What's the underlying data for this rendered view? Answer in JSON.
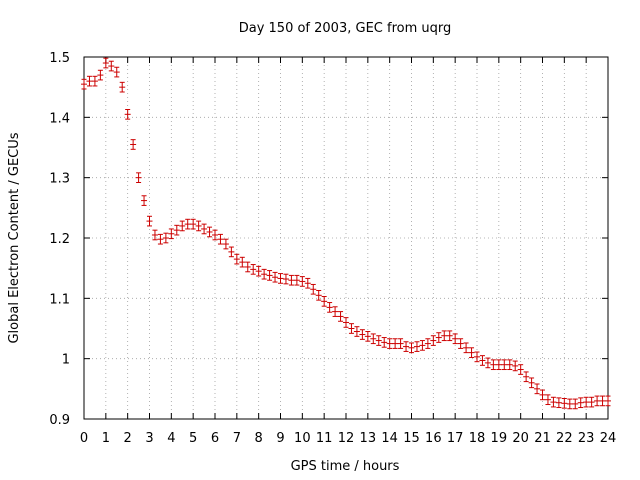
{
  "chart_data": {
    "type": "scatter",
    "title": "Day 150 of 2003, GEC from uqrg",
    "xlabel": "GPS time / hours",
    "ylabel": "Global Electron Content / GECUs",
    "xlim": [
      0,
      24
    ],
    "ylim": [
      0.9,
      1.5
    ],
    "xticks": [
      "0",
      "1",
      "2",
      "3",
      "4",
      "5",
      "6",
      "7",
      "8",
      "9",
      "10",
      "11",
      "12",
      "13",
      "14",
      "15",
      "16",
      "17",
      "18",
      "19",
      "20",
      "21",
      "22",
      "23",
      "24"
    ],
    "yticks": [
      "0.9",
      "1",
      "1.1",
      "1.2",
      "1.3",
      "1.4",
      "1.5"
    ],
    "grid": true,
    "error_bar_halfwidth": 0.008,
    "color": "#cc0000",
    "series": [
      {
        "x": [
          0.0,
          0.25,
          0.5,
          0.75,
          1.0,
          1.25,
          1.5,
          1.75,
          2.0,
          2.25,
          2.5,
          2.75,
          3.0,
          3.25,
          3.5,
          3.75,
          4.0,
          4.25,
          4.5,
          4.75,
          5.0,
          5.25,
          5.5,
          5.75,
          6.0,
          6.25,
          6.5,
          6.75,
          7.0,
          7.25,
          7.5,
          7.75,
          8.0,
          8.25,
          8.5,
          8.75,
          9.0,
          9.25,
          9.5,
          9.75,
          10.0,
          10.25,
          10.5,
          10.75,
          11.0,
          11.25,
          11.5,
          11.75,
          12.0,
          12.25,
          12.5,
          12.75,
          13.0,
          13.25,
          13.5,
          13.75,
          14.0,
          14.25,
          14.5,
          14.75,
          15.0,
          15.25,
          15.5,
          15.75,
          16.0,
          16.25,
          16.5,
          16.75,
          17.0,
          17.25,
          17.5,
          17.75,
          18.0,
          18.25,
          18.5,
          18.75,
          19.0,
          19.25,
          19.5,
          19.75,
          20.0,
          20.25,
          20.5,
          20.75,
          21.0,
          21.25,
          21.5,
          21.75,
          22.0,
          22.25,
          22.5,
          22.75,
          23.0,
          23.25,
          23.5,
          23.75,
          24.0
        ],
        "y": [
          1.455,
          1.46,
          1.46,
          1.47,
          1.49,
          1.485,
          1.475,
          1.45,
          1.405,
          1.355,
          1.3,
          1.262,
          1.228,
          1.205,
          1.198,
          1.2,
          1.207,
          1.213,
          1.22,
          1.223,
          1.223,
          1.22,
          1.215,
          1.21,
          1.205,
          1.198,
          1.19,
          1.177,
          1.165,
          1.16,
          1.152,
          1.148,
          1.145,
          1.14,
          1.138,
          1.135,
          1.133,
          1.132,
          1.13,
          1.13,
          1.128,
          1.125,
          1.115,
          1.105,
          1.095,
          1.085,
          1.078,
          1.07,
          1.06,
          1.05,
          1.045,
          1.04,
          1.037,
          1.033,
          1.03,
          1.027,
          1.025,
          1.025,
          1.025,
          1.02,
          1.018,
          1.02,
          1.022,
          1.025,
          1.03,
          1.035,
          1.038,
          1.038,
          1.033,
          1.025,
          1.018,
          1.01,
          1.003,
          0.997,
          0.993,
          0.99,
          0.99,
          0.99,
          0.99,
          0.988,
          0.982,
          0.97,
          0.96,
          0.95,
          0.94,
          0.932,
          0.928,
          0.927,
          0.926,
          0.925,
          0.925,
          0.927,
          0.928,
          0.928,
          0.93,
          0.93,
          0.93
        ]
      }
    ]
  }
}
